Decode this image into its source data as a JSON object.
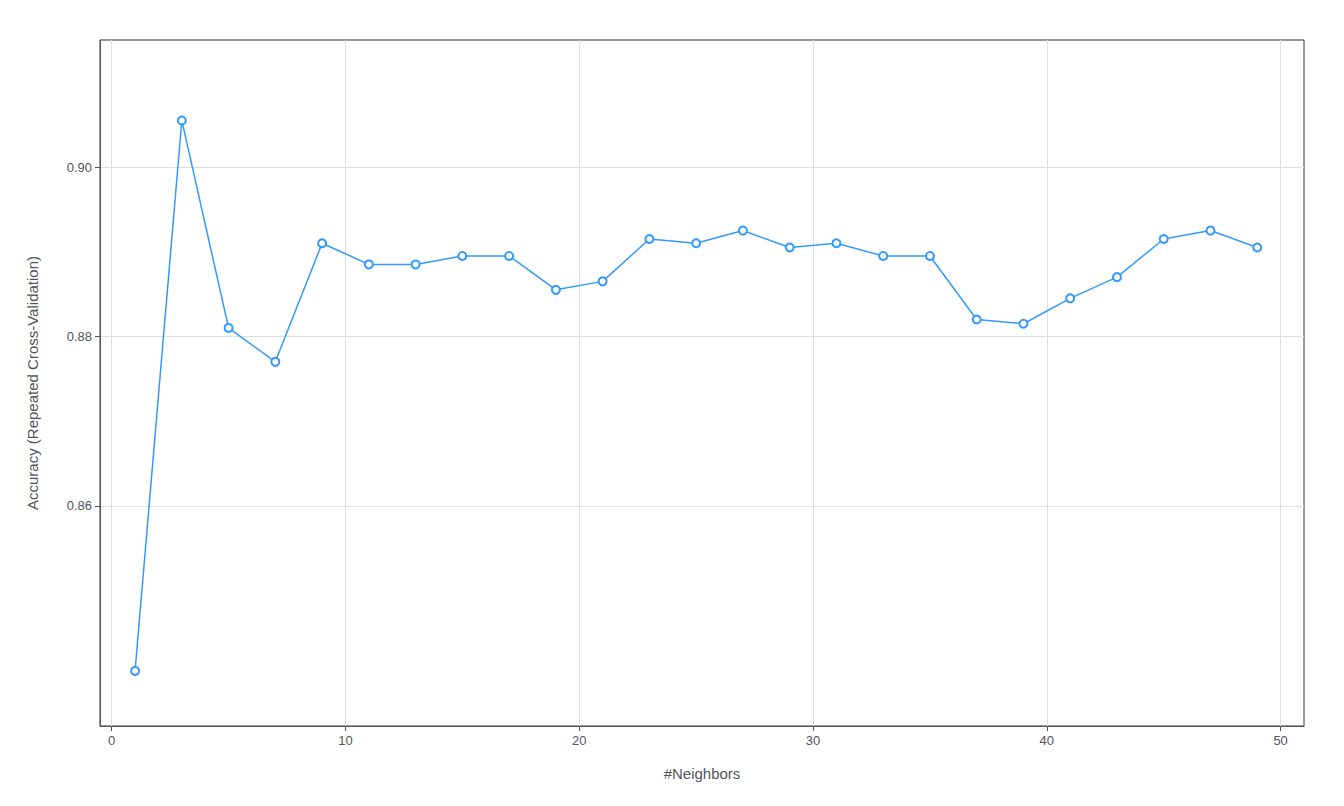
{
  "chart_data": {
    "type": "line",
    "x": [
      1,
      3,
      5,
      7,
      9,
      11,
      13,
      15,
      17,
      19,
      21,
      23,
      25,
      27,
      29,
      31,
      33,
      35,
      37,
      39,
      41,
      43,
      45,
      47,
      49
    ],
    "values": [
      0.8405,
      0.9055,
      0.881,
      0.877,
      0.891,
      0.8885,
      0.8885,
      0.8895,
      0.8895,
      0.8855,
      0.8865,
      0.8915,
      0.891,
      0.8925,
      0.8905,
      0.891,
      0.8895,
      0.8895,
      0.882,
      0.8815,
      0.8845,
      0.887,
      0.8915,
      0.8925,
      0.8905
    ],
    "color": "#3399FF",
    "marker": "circle",
    "xlabel": "#Neighbors",
    "ylabel": "Accuracy (Repeated Cross-Validation)",
    "xlim": [
      -0.5,
      51
    ],
    "ylim": [
      0.834,
      0.915
    ],
    "xticks": [
      0,
      10,
      20,
      30,
      40,
      50
    ],
    "yticks": [
      0.86,
      0.88,
      {
        "value": 0.9,
        "label": "0.90"
      }
    ],
    "grid": true
  }
}
